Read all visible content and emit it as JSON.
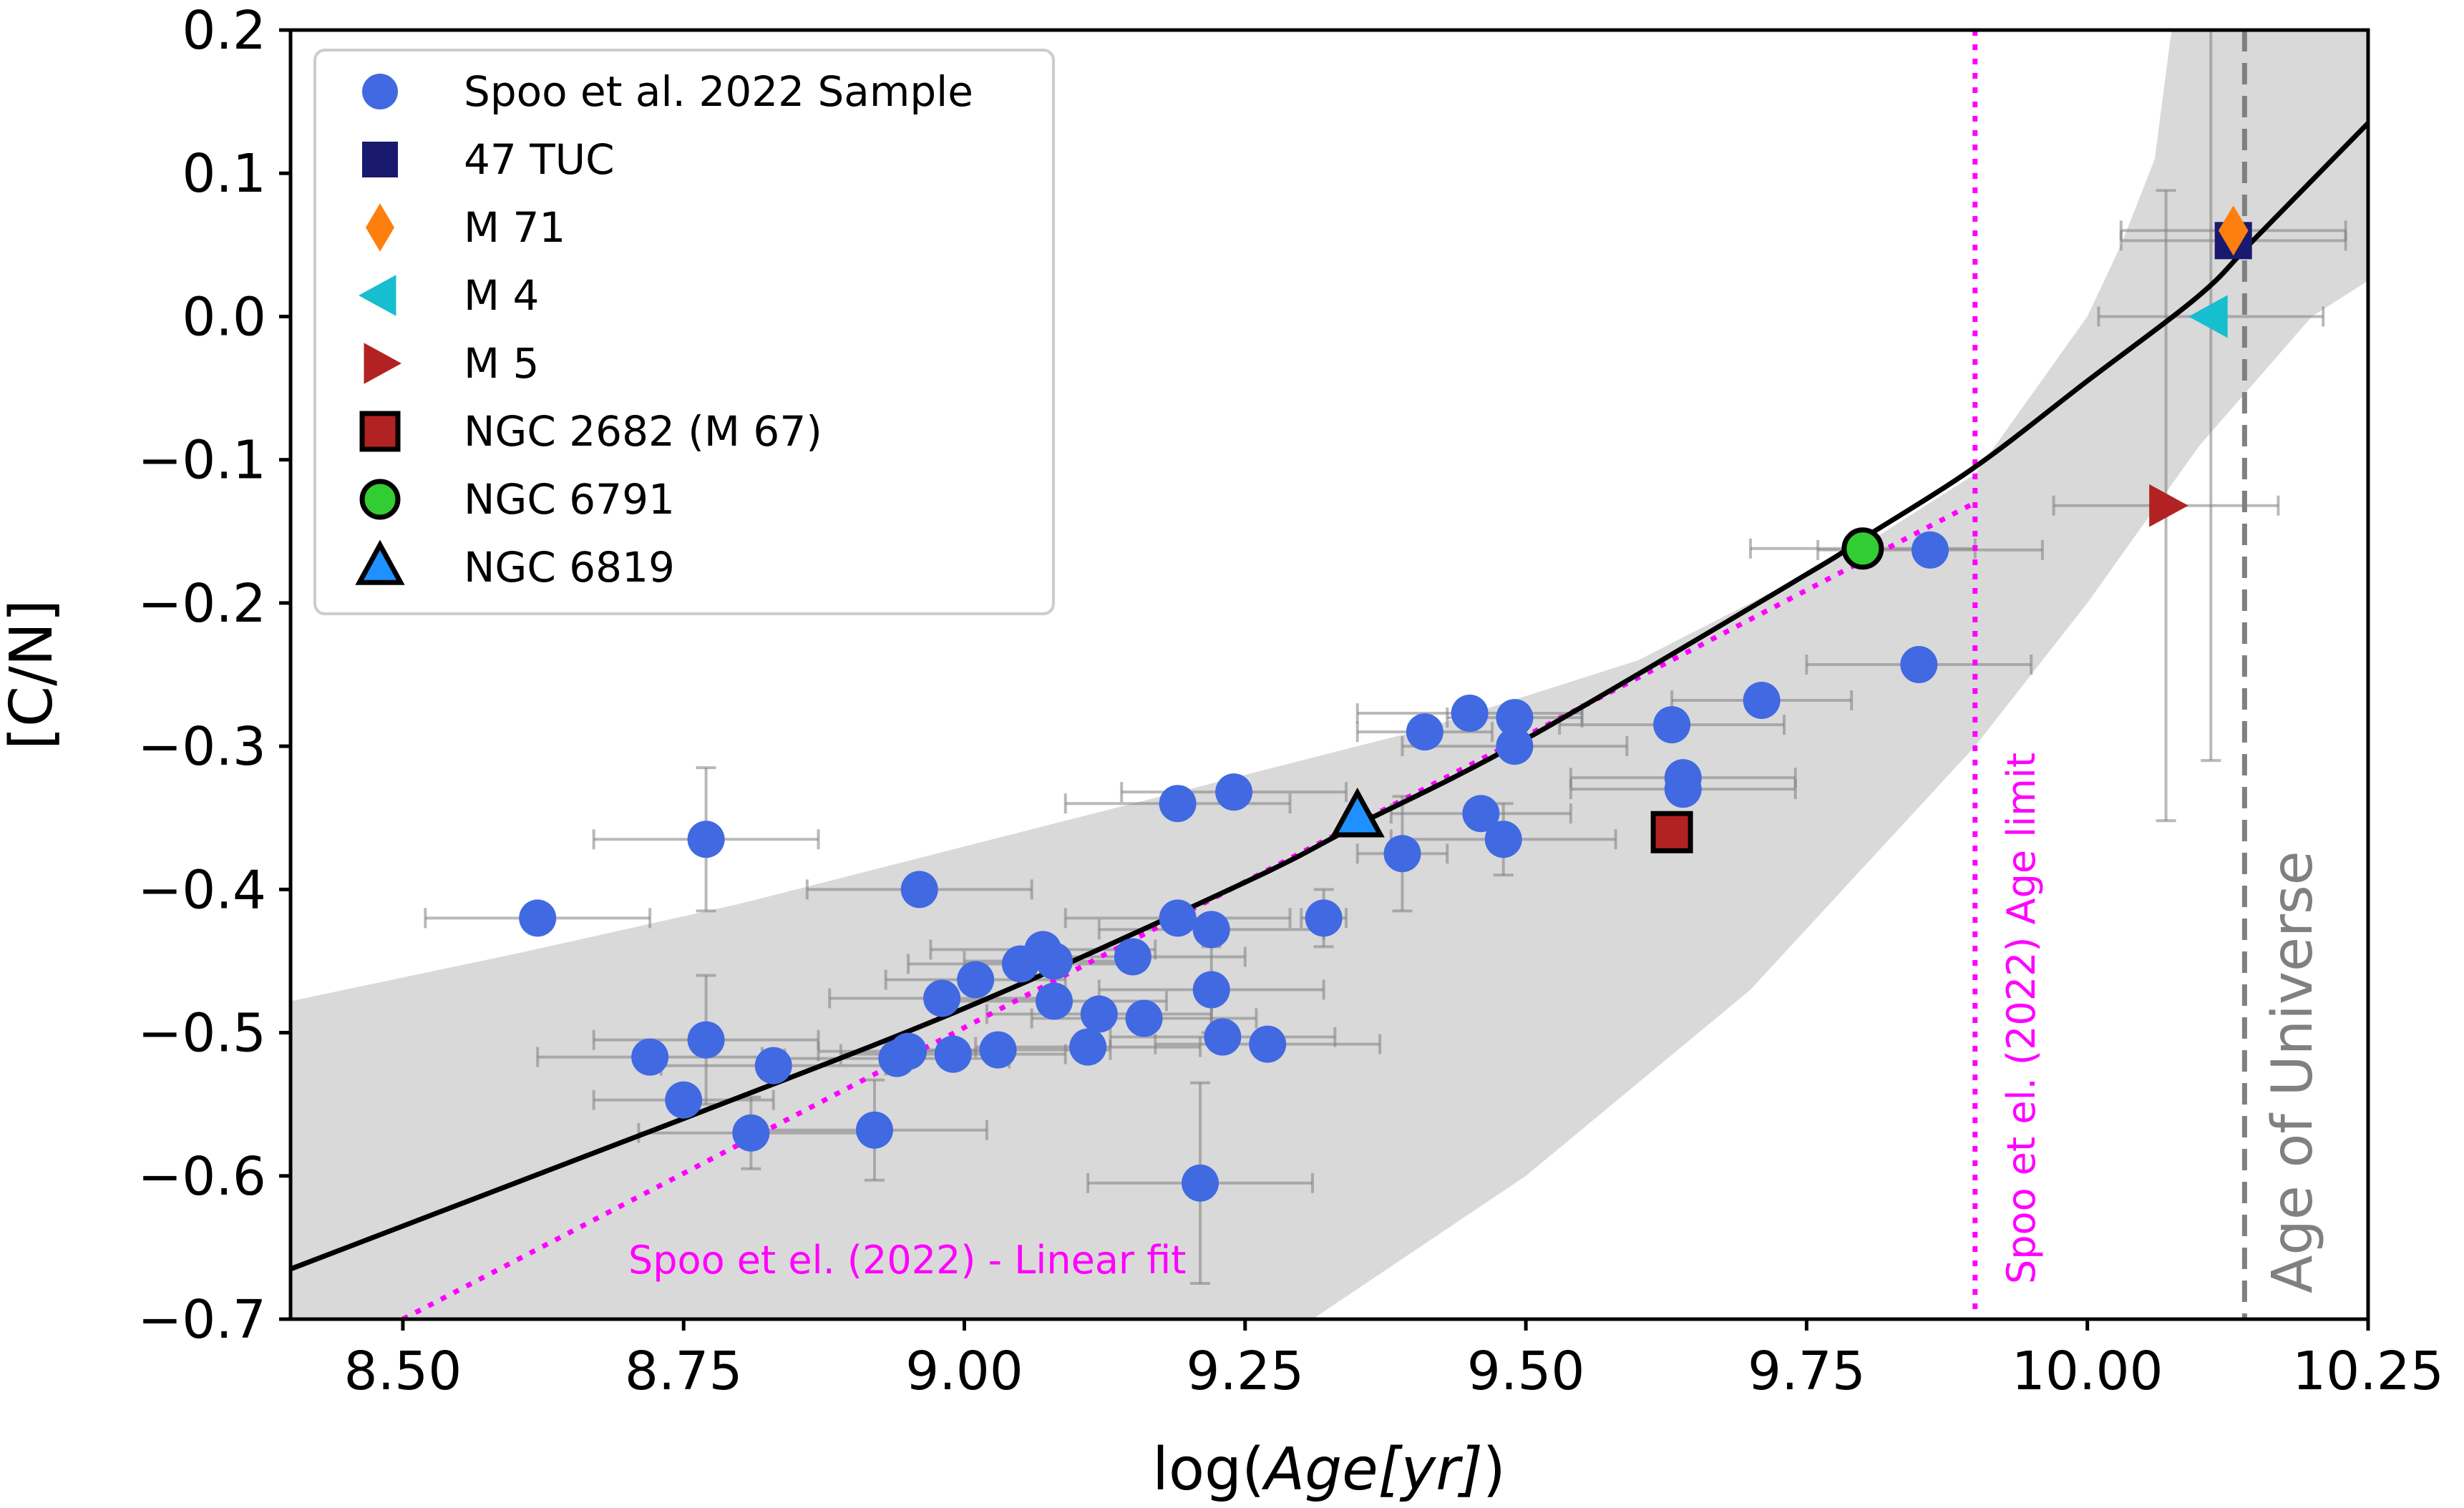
{
  "chart_data": {
    "type": "scatter",
    "xlabel_prefix": "log(",
    "xlabel_var": "Age[yr]",
    "xlabel_suffix": ")",
    "ylabel": "[C/N]",
    "xlim": [
      8.4,
      10.25
    ],
    "ylim": [
      -0.7,
      0.2
    ],
    "xticks": [
      8.5,
      8.75,
      9.0,
      9.25,
      9.5,
      9.75,
      10.0,
      10.25
    ],
    "xtick_labels": [
      "8.50",
      "8.75",
      "9.00",
      "9.25",
      "9.50",
      "9.75",
      "10.00",
      "10.25"
    ],
    "yticks": [
      0.2,
      0.1,
      0.0,
      -0.1,
      -0.2,
      -0.3,
      -0.4,
      -0.5,
      -0.6,
      -0.7
    ],
    "ytick_labels": [
      "0.2",
      "0.1",
      "0.0",
      "−0.1",
      "−0.2",
      "−0.3",
      "−0.4",
      "−0.5",
      "−0.6",
      "−0.7"
    ],
    "colors": {
      "sample": "#4169e1",
      "tuc47": "#191970",
      "m71": "#ff7f0e",
      "m4": "#17becf",
      "m5": "#b22222",
      "ngc2682": "#b22222",
      "ngc6791": "#32cd32",
      "ngc6819": "#1e90ff",
      "fit": "#000000",
      "linear_fit": "#ff00ff",
      "band": "#d9d9d9",
      "universe": "#808080",
      "errorbar": "#808080"
    },
    "sample": [
      {
        "x": 8.62,
        "y": -0.42,
        "xerr": 0.1
      },
      {
        "x": 8.77,
        "y": -0.365,
        "xerr": 0.1,
        "yerr": 0.05
      },
      {
        "x": 8.72,
        "y": -0.517,
        "xerr": 0.1
      },
      {
        "x": 8.77,
        "y": -0.505,
        "xerr": 0.1,
        "yerr": 0.045
      },
      {
        "x": 8.75,
        "y": -0.547,
        "xerr": 0.08
      },
      {
        "x": 8.83,
        "y": -0.523,
        "xerr": 0.1
      },
      {
        "x": 8.81,
        "y": -0.57,
        "xerr": 0.1,
        "yerr": 0.025
      },
      {
        "x": 8.92,
        "y": -0.568,
        "xerr": 0.1,
        "yerr": 0.035
      },
      {
        "x": 8.94,
        "y": -0.518,
        "xerr": 0.1
      },
      {
        "x": 8.95,
        "y": -0.513,
        "xerr": 0.08
      },
      {
        "x": 8.96,
        "y": -0.4,
        "xerr": 0.1
      },
      {
        "x": 8.98,
        "y": -0.476,
        "xerr": 0.1
      },
      {
        "x": 8.99,
        "y": -0.515,
        "xerr": 0.1
      },
      {
        "x": 9.01,
        "y": -0.463,
        "xerr": 0.08
      },
      {
        "x": 9.03,
        "y": -0.512,
        "xerr": 0.1
      },
      {
        "x": 9.05,
        "y": -0.452,
        "xerr": 0.1
      },
      {
        "x": 9.07,
        "y": -0.442,
        "xerr": 0.1
      },
      {
        "x": 9.08,
        "y": -0.45,
        "xerr": 0.08
      },
      {
        "x": 9.08,
        "y": -0.478,
        "xerr": 0.1
      },
      {
        "x": 9.11,
        "y": -0.51,
        "xerr": 0.1
      },
      {
        "x": 9.12,
        "y": -0.487,
        "xerr": 0.1
      },
      {
        "x": 9.15,
        "y": -0.447,
        "xerr": 0.1
      },
      {
        "x": 9.16,
        "y": -0.49,
        "xerr": 0.1
      },
      {
        "x": 9.19,
        "y": -0.34,
        "xerr": 0.1
      },
      {
        "x": 9.19,
        "y": -0.42,
        "xerr": 0.1
      },
      {
        "x": 9.21,
        "y": -0.605,
        "xerr": 0.1,
        "yerr": 0.07
      },
      {
        "x": 9.22,
        "y": -0.428,
        "xerr": 0.1
      },
      {
        "x": 9.22,
        "y": -0.47,
        "xerr": 0.1,
        "yerr": 0.03
      },
      {
        "x": 9.23,
        "y": -0.503,
        "xerr": 0.1
      },
      {
        "x": 9.24,
        "y": -0.332,
        "xerr": 0.1
      },
      {
        "x": 9.27,
        "y": -0.508,
        "xerr": 0.1
      },
      {
        "x": 9.32,
        "y": -0.42,
        "xerr": 0.02,
        "yerr": 0.02
      },
      {
        "x": 9.39,
        "y": -0.375,
        "xerr": 0.04,
        "yerr": 0.04
      },
      {
        "x": 9.41,
        "y": -0.29,
        "xerr": 0.06
      },
      {
        "x": 9.45,
        "y": -0.277,
        "xerr": 0.1
      },
      {
        "x": 9.46,
        "y": -0.347,
        "xerr": 0.08
      },
      {
        "x": 9.48,
        "y": -0.365,
        "xerr": 0.1,
        "yerr": 0.025
      },
      {
        "x": 9.49,
        "y": -0.28,
        "xerr": 0.06
      },
      {
        "x": 9.49,
        "y": -0.3,
        "xerr": 0.1
      },
      {
        "x": 9.63,
        "y": -0.285,
        "xerr": 0.1
      },
      {
        "x": 9.64,
        "y": -0.322,
        "xerr": 0.1
      },
      {
        "x": 9.64,
        "y": -0.33,
        "xerr": 0.1
      },
      {
        "x": 9.71,
        "y": -0.268,
        "xerr": 0.08
      },
      {
        "x": 9.85,
        "y": -0.243,
        "xerr": 0.1
      },
      {
        "x": 9.86,
        "y": -0.163,
        "xerr": 0.1
      }
    ],
    "clusters": {
      "tuc47": {
        "x": 10.13,
        "y": 0.053,
        "xerr": 0.1
      },
      "m71": {
        "x": 10.13,
        "y": 0.06,
        "xerr": 0.1
      },
      "m4": {
        "x": 10.11,
        "y": 0.0,
        "xerr": 0.1,
        "yerr": 0.31
      },
      "m5": {
        "x": 10.07,
        "y": -0.132,
        "xerr": 0.1,
        "yerr": 0.22
      },
      "ngc2682": {
        "x": 9.63,
        "y": -0.36
      },
      "ngc6791": {
        "x": 9.8,
        "y": -0.162,
        "xerr": 0.1
      },
      "ngc6819": {
        "x": 9.35,
        "y": -0.35
      }
    },
    "fit_curve": [
      {
        "x": 8.4,
        "y": -0.665
      },
      {
        "x": 8.5,
        "y": -0.635
      },
      {
        "x": 8.6,
        "y": -0.605
      },
      {
        "x": 8.75,
        "y": -0.56
      },
      {
        "x": 9.0,
        "y": -0.483
      },
      {
        "x": 9.25,
        "y": -0.395
      },
      {
        "x": 9.35,
        "y": -0.355
      },
      {
        "x": 9.5,
        "y": -0.295
      },
      {
        "x": 9.75,
        "y": -0.18
      },
      {
        "x": 9.8,
        "y": -0.155
      },
      {
        "x": 9.9,
        "y": -0.105
      },
      {
        "x": 10.0,
        "y": -0.045
      },
      {
        "x": 10.1,
        "y": 0.015
      },
      {
        "x": 10.15,
        "y": 0.055
      },
      {
        "x": 10.25,
        "y": 0.135
      }
    ],
    "band_upper": [
      {
        "x": 8.4,
        "y": -0.478
      },
      {
        "x": 8.6,
        "y": -0.445
      },
      {
        "x": 8.8,
        "y": -0.41
      },
      {
        "x": 9.0,
        "y": -0.37
      },
      {
        "x": 9.2,
        "y": -0.33
      },
      {
        "x": 9.4,
        "y": -0.29
      },
      {
        "x": 9.6,
        "y": -0.24
      },
      {
        "x": 9.8,
        "y": -0.16
      },
      {
        "x": 9.9,
        "y": -0.11
      },
      {
        "x": 10.0,
        "y": 0.0
      },
      {
        "x": 10.03,
        "y": 0.05
      },
      {
        "x": 10.06,
        "y": 0.11
      },
      {
        "x": 10.07,
        "y": 0.17
      },
      {
        "x": 10.075,
        "y": 0.2
      }
    ],
    "band_lower": [
      {
        "x": 9.31,
        "y": -0.7
      },
      {
        "x": 9.5,
        "y": -0.6
      },
      {
        "x": 9.7,
        "y": -0.47
      },
      {
        "x": 9.9,
        "y": -0.3
      },
      {
        "x": 10.0,
        "y": -0.2
      },
      {
        "x": 10.1,
        "y": -0.09
      },
      {
        "x": 10.2,
        "y": 0.0
      },
      {
        "x": 10.25,
        "y": 0.025
      }
    ],
    "band_right_top": {
      "x": 10.25,
      "y": 0.2
    },
    "linear_fit": [
      {
        "x": 8.5,
        "y": -0.7
      },
      {
        "x": 9.9,
        "y": -0.13
      }
    ],
    "age_limit_x": 9.9,
    "universe_x": 10.14,
    "annotations": {
      "linear_fit_text": "Spoo et el. (2022) - Linear fit",
      "age_limit_text": "Spoo et el. (2022) Age limit",
      "universe_text": "Age of Universe"
    },
    "legend": [
      {
        "label": "Spoo et al. 2022 Sample",
        "marker": "circle",
        "color": "#4169e1"
      },
      {
        "label": "47 TUC",
        "marker": "square",
        "color": "#191970"
      },
      {
        "label": "M 71",
        "marker": "diamond",
        "color": "#ff7f0e"
      },
      {
        "label": "M 4",
        "marker": "triangle-left",
        "color": "#17becf"
      },
      {
        "label": "M 5",
        "marker": "triangle-right",
        "color": "#b22222"
      },
      {
        "label": "NGC 2682 (M 67)",
        "marker": "square-outlined",
        "color": "#b22222"
      },
      {
        "label": "NGC 6791",
        "marker": "circle-outlined",
        "color": "#32cd32"
      },
      {
        "label": "NGC 6819",
        "marker": "triangle-up-outlined",
        "color": "#1e90ff"
      }
    ],
    "legend_position": "top-left"
  }
}
